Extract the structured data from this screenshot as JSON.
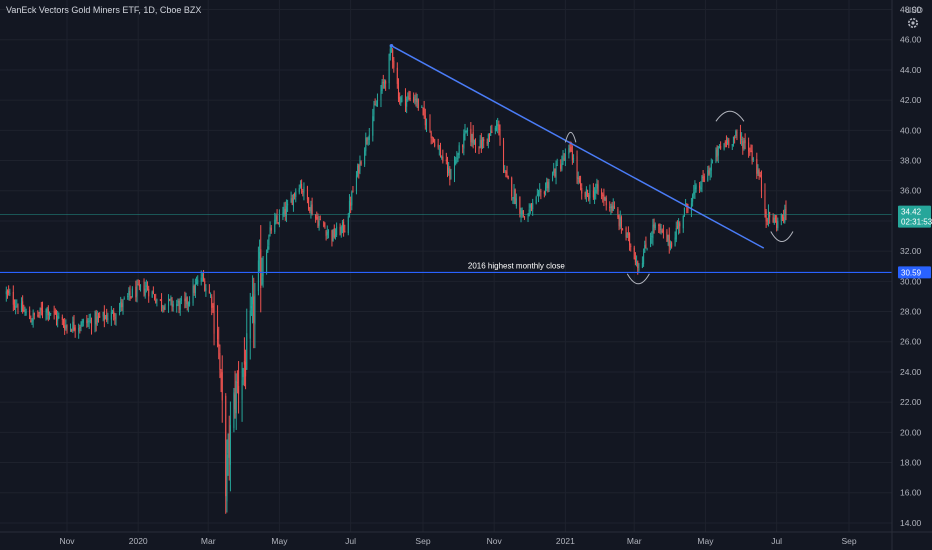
{
  "header": {
    "title": "VanEck Vectors Gold Miners ETF, 1D, Cboe BZX",
    "currency": "USD"
  },
  "colors": {
    "background": "#131722",
    "up": "#26a69a",
    "down": "#ef5350",
    "trendline": "#4a7cf7",
    "support": "#2962ff",
    "current_line": "#26a69a",
    "axis_text": "#b2b5be"
  },
  "icons": {
    "settings": "gear-icon"
  },
  "price_badge": {
    "price": "34.42",
    "countdown": "02:31:53"
  },
  "support_badge": {
    "price": "30.59"
  },
  "chart_data": {
    "type": "candlestick",
    "title": "VanEck Vectors Gold Miners ETF, 1D, Cboe BZX",
    "ylabel": "USD",
    "ylim": [
      13.4,
      48.5
    ],
    "y_ticks": [
      "14.00",
      "16.00",
      "18.00",
      "20.00",
      "22.00",
      "24.00",
      "26.00",
      "28.00",
      "30.00",
      "32.00",
      "34.00",
      "36.00",
      "38.00",
      "40.00",
      "42.00",
      "44.00",
      "46.00",
      "48.00"
    ],
    "x_ticks": [
      {
        "label": "Nov",
        "date": "2019-11-01"
      },
      {
        "label": "2020",
        "date": "2020-01-01"
      },
      {
        "label": "Mar",
        "date": "2020-03-01"
      },
      {
        "label": "May",
        "date": "2020-05-01"
      },
      {
        "label": "Jul",
        "date": "2020-07-01"
      },
      {
        "label": "Sep",
        "date": "2020-09-01"
      },
      {
        "label": "Nov",
        "date": "2020-11-01"
      },
      {
        "label": "2021",
        "date": "2021-01-01"
      },
      {
        "label": "Mar",
        "date": "2021-03-01"
      },
      {
        "label": "May",
        "date": "2021-05-01"
      },
      {
        "label": "Jul",
        "date": "2021-07-01"
      },
      {
        "label": "Sep",
        "date": "2021-09-01"
      }
    ],
    "price_path": [
      [
        "2019-09-10",
        29.2
      ],
      [
        "2019-10-01",
        27.5
      ],
      [
        "2019-10-15",
        28.2
      ],
      [
        "2019-11-01",
        27.0
      ],
      [
        "2019-11-20",
        27.3
      ],
      [
        "2019-12-10",
        27.8
      ],
      [
        "2019-12-27",
        29.2
      ],
      [
        "2020-01-08",
        29.6
      ],
      [
        "2020-01-20",
        28.6
      ],
      [
        "2020-02-10",
        28.4
      ],
      [
        "2020-02-24",
        30.3
      ],
      [
        "2020-03-03",
        29.0
      ],
      [
        "2020-03-09",
        26.8
      ],
      [
        "2020-03-16",
        16.9
      ],
      [
        "2020-03-24",
        22.5
      ],
      [
        "2020-04-03",
        25.0
      ],
      [
        "2020-04-12",
        29.8
      ],
      [
        "2020-04-24",
        33.5
      ],
      [
        "2020-05-08",
        34.8
      ],
      [
        "2020-05-18",
        36.6
      ],
      [
        "2020-06-01",
        34.2
      ],
      [
        "2020-06-15",
        33.0
      ],
      [
        "2020-06-26",
        33.6
      ],
      [
        "2020-07-08",
        37.6
      ],
      [
        "2020-07-20",
        41.0
      ],
      [
        "2020-07-31",
        43.5
      ],
      [
        "2020-08-05",
        45.4
      ],
      [
        "2020-08-12",
        42.0
      ],
      [
        "2020-08-25",
        42.2
      ],
      [
        "2020-09-10",
        39.5
      ],
      [
        "2020-09-24",
        37.0
      ],
      [
        "2020-10-08",
        39.8
      ],
      [
        "2020-10-20",
        39.0
      ],
      [
        "2020-11-05",
        40.3
      ],
      [
        "2020-11-09",
        37.2
      ],
      [
        "2020-11-27",
        34.2
      ],
      [
        "2020-12-10",
        35.6
      ],
      [
        "2020-12-22",
        37.2
      ],
      [
        "2021-01-06",
        38.7
      ],
      [
        "2021-01-15",
        35.6
      ],
      [
        "2021-01-28",
        36.0
      ],
      [
        "2021-02-10",
        34.9
      ],
      [
        "2021-02-26",
        32.4
      ],
      [
        "2021-03-05",
        31.0
      ],
      [
        "2021-03-18",
        33.7
      ],
      [
        "2021-04-01",
        32.5
      ],
      [
        "2021-04-15",
        35.0
      ],
      [
        "2021-05-01",
        36.9
      ],
      [
        "2021-05-12",
        38.6
      ],
      [
        "2021-05-19",
        39.3
      ],
      [
        "2021-05-28",
        39.6
      ],
      [
        "2021-06-08",
        38.8
      ],
      [
        "2021-06-16",
        37.0
      ],
      [
        "2021-06-22",
        34.4
      ],
      [
        "2021-07-01",
        33.9
      ],
      [
        "2021-07-09",
        34.42
      ]
    ],
    "trendline": [
      [
        "2020-08-05",
        45.6
      ],
      [
        "2021-06-20",
        32.2
      ]
    ],
    "support": {
      "price": 30.59,
      "label": "2016 highest monthly close"
    },
    "current_price": 34.42,
    "arcs": [
      {
        "shape": "cap",
        "from": "2021-01-01",
        "to": "2021-01-10",
        "price": 39.2
      },
      {
        "shape": "cup",
        "from": "2021-02-23",
        "to": "2021-03-14",
        "price": 30.5
      },
      {
        "shape": "cap",
        "from": "2021-05-10",
        "to": "2021-06-03",
        "price": 40.6
      },
      {
        "shape": "cup",
        "from": "2021-06-26",
        "to": "2021-07-15",
        "price": 33.3
      }
    ]
  }
}
